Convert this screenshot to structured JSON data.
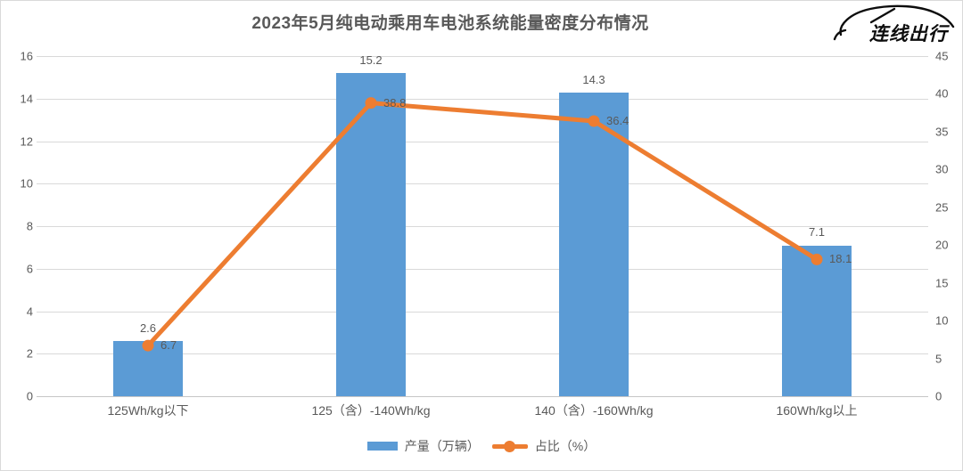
{
  "title": "2023年5月纯电动乘用车电池系统能量密度分布情况",
  "logo": {
    "text": "连线出行",
    "icon": "car-outline-icon"
  },
  "chart_data": {
    "type": "bar",
    "subtype": "combo-bar-line-dual-axis",
    "title": "2023年5月纯电动乘用车电池系统能量密度分布情况",
    "categories": [
      "125Wh/kg以下",
      "125（含）-140Wh/kg",
      "140（含）-160Wh/kg",
      "160Wh/kg以上"
    ],
    "series": [
      {
        "name": "产量（万辆）",
        "kind": "bar",
        "axis": "left",
        "color": "#5B9BD5",
        "values": [
          2.6,
          15.2,
          14.3,
          7.1
        ],
        "data_labels": [
          "2.6",
          "15.2",
          "14.3",
          "7.1"
        ]
      },
      {
        "name": "占比（%）",
        "kind": "line",
        "axis": "right",
        "color": "#ED7D31",
        "marker": "circle",
        "values": [
          6.7,
          38.8,
          36.4,
          18.1
        ],
        "data_labels": [
          "6.7",
          "38.8",
          "36.4",
          "18.1"
        ]
      }
    ],
    "left_axis": {
      "min": 0,
      "max": 16,
      "step": 2,
      "ticks": [
        0,
        2,
        4,
        6,
        8,
        10,
        12,
        14,
        16
      ]
    },
    "right_axis": {
      "min": 0,
      "max": 45,
      "step": 5,
      "ticks": [
        0,
        5,
        10,
        15,
        20,
        25,
        30,
        35,
        40,
        45
      ]
    },
    "grid": true,
    "legend_position": "bottom",
    "style": {
      "grid_color": "#D9D9D9",
      "axis_line_color": "#C6C6C6",
      "text_color": "#595959",
      "frame_border_color": "#D9D9D9",
      "background": "#FFFFFF"
    }
  }
}
